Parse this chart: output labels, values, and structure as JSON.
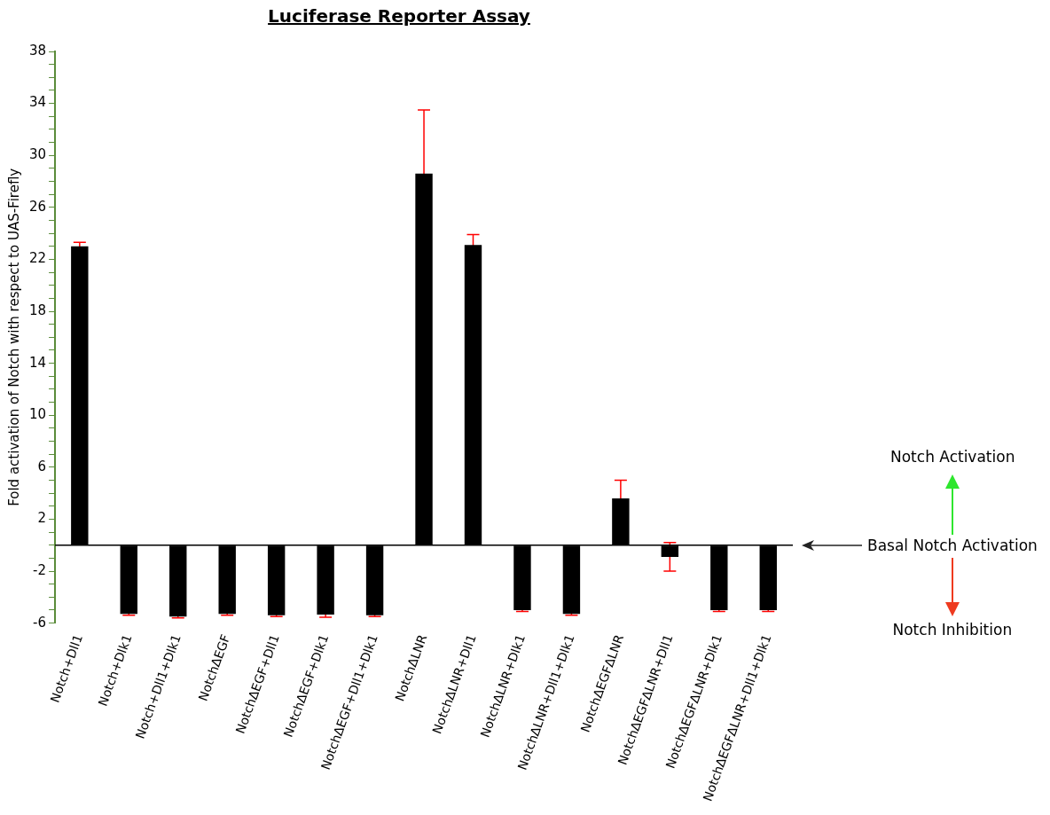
{
  "chart_data": {
    "type": "bar",
    "title": "Luciferase Reporter Assay",
    "ylabel": "Fold activation of Notch with respect to UAS-Firefly",
    "categories": [
      "Notch+Dll1",
      "Notch+Dlk1",
      "Notch+Dll1+Dlk1",
      "NotchΔEGF",
      "NotchΔEGF+Dll1",
      "NotchΔEGF+Dlk1",
      "NotchΔEGF+Dll1+Dlk1",
      "NotchΔLNR",
      "NotchΔLNR+Dll1",
      "NotchΔLNR+Dlk1",
      "NotchΔLNR+Dll1+Dlk1",
      "NotchΔEGFΔLNR",
      "NotchΔEGFΔLNR+Dll1",
      "NotchΔEGFΔLNR+Dlk1",
      "NotchΔEGFΔLNR+Dll1+Dlk1"
    ],
    "values": [
      23.0,
      -5.3,
      -5.5,
      -5.3,
      -5.4,
      -5.35,
      -5.4,
      28.6,
      23.1,
      -5.0,
      -5.3,
      3.6,
      -0.9,
      -5.0,
      -5.0
    ],
    "errors": [
      0.3,
      0.1,
      0.1,
      0.1,
      0.1,
      0.2,
      0.1,
      4.9,
      0.8,
      0.1,
      0.1,
      1.4,
      1.1,
      0.1,
      0.1
    ],
    "color": "#000000",
    "ylim": [
      -6,
      38
    ],
    "yticks": [
      -6,
      {
        "value": -5,
        "label": null
      },
      {
        "value": -4,
        "label": null
      },
      {
        "value": -3,
        "label": null
      },
      -2,
      {
        "value": -1,
        "label": null
      },
      {
        "value": 0,
        "label": null
      },
      {
        "value": 1,
        "label": null
      },
      2,
      {
        "value": 3,
        "label": null
      },
      {
        "value": 4,
        "label": null
      },
      {
        "value": 5,
        "label": null
      },
      6,
      {
        "value": 7,
        "label": null
      },
      {
        "value": 8,
        "label": null
      },
      {
        "value": 9,
        "label": null
      },
      10,
      {
        "value": 11,
        "label": null
      },
      {
        "value": 12,
        "label": null
      },
      {
        "value": 13,
        "label": null
      },
      14,
      {
        "value": 15,
        "label": null
      },
      {
        "value": 16,
        "label": null
      },
      {
        "value": 17,
        "label": null
      },
      18,
      {
        "value": 19,
        "label": null
      },
      {
        "value": 20,
        "label": null
      },
      {
        "value": 21,
        "label": null
      },
      22,
      {
        "value": 23,
        "label": null
      },
      {
        "value": 24,
        "label": null
      },
      {
        "value": 25,
        "label": null
      },
      26,
      {
        "value": 27,
        "label": null
      },
      {
        "value": 28,
        "label": null
      },
      {
        "value": 29,
        "label": null
      },
      30,
      {
        "value": 31,
        "label": null
      },
      {
        "value": 32,
        "label": null
      },
      {
        "value": 33,
        "label": null
      },
      34,
      {
        "value": 35,
        "label": null
      },
      {
        "value": 36,
        "label": null
      },
      {
        "value": 37,
        "label": null
      },
      38
    ],
    "annotations": [
      "Notch Activation",
      "Basal Notch Activation",
      "Notch Inhibition"
    ]
  }
}
